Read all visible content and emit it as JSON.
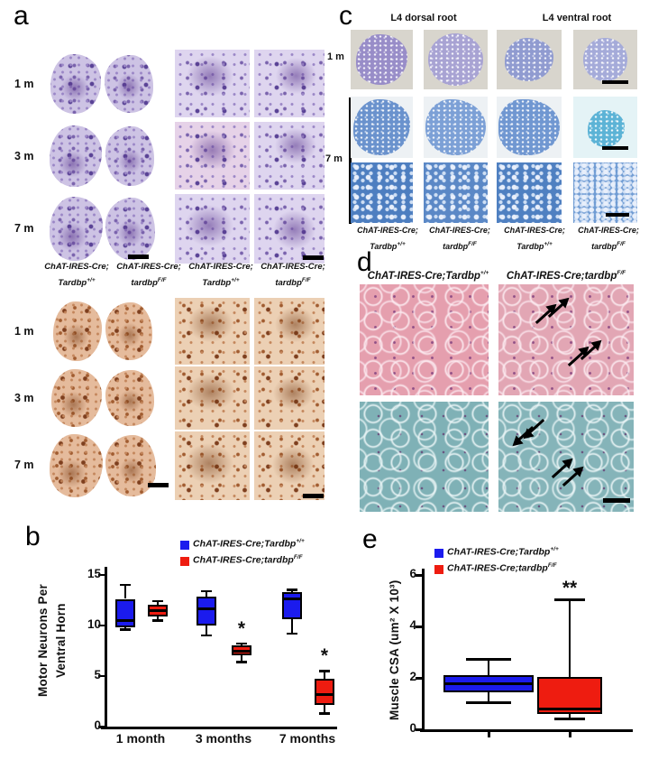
{
  "panels": {
    "a": {
      "label": "a",
      "rows": [
        "1 m",
        "3 m",
        "7 m"
      ],
      "genotypes": [
        {
          "line1": "ChAT-IRES-Cre;",
          "base": "Tardbp",
          "sup": "+/+"
        },
        {
          "line1": "ChAT-IRES-Cre;",
          "base": "tardbp",
          "sup": "F/F"
        },
        {
          "line1": "ChAT-IRES-Cre;",
          "base": "Tardbp",
          "sup": "+/+"
        },
        {
          "line1": "ChAT-IRES-Cre;",
          "base": "tardbp",
          "sup": "F/F"
        }
      ]
    },
    "b": {
      "label": "b"
    },
    "c": {
      "label": "c",
      "headers": [
        "L4 dorsal root",
        "L4 ventral root"
      ],
      "rows": [
        "1 m",
        "7 m"
      ],
      "genotypes": [
        {
          "line1": "ChAT-IRES-Cre;",
          "base": "Tardbp",
          "sup": "+/+"
        },
        {
          "line1": "ChAT-IRES-Cre;",
          "base": "tardbp",
          "sup": "F/F"
        },
        {
          "line1": "ChAT-IRES-Cre;",
          "base": "Tardbp",
          "sup": "+/+"
        },
        {
          "line1": "ChAT-IRES-Cre;",
          "base": "tardbp",
          "sup": "F/F"
        }
      ]
    },
    "d": {
      "label": "d",
      "headers": [
        {
          "base": "ChAT-IRES-Cre;Tardbp",
          "sup": "+/+"
        },
        {
          "base": "ChAT-IRES-Cre;tardbp",
          "sup": "F/F"
        }
      ]
    },
    "e": {
      "label": "e"
    }
  },
  "colors": {
    "box_blue": "#1b1bee",
    "box_red": "#ee1c10"
  },
  "chart_data": [
    {
      "id": "b",
      "type": "box",
      "ylabel_lines": [
        "Motor Neurons Per",
        "Ventral Horn"
      ],
      "yticks": [
        0,
        5,
        10,
        15
      ],
      "ylim": [
        0,
        15.5
      ],
      "categories": [
        "1 month",
        "3 months",
        "7 months"
      ],
      "legend": [
        {
          "base": "ChAT-IRES-Cre;Tardbp",
          "sup": "+/+",
          "color": "#1b1bee"
        },
        {
          "base": "ChAT-IRES-Cre;tardbp",
          "sup": "F/F",
          "color": "#ee1c10"
        }
      ],
      "boxes": [
        {
          "series": "control",
          "category": "1 month",
          "color": "#1b1bee",
          "lo": 9.6,
          "q1": 9.8,
          "med": 10.5,
          "q3": 12.6,
          "hi": 14.0,
          "sig": ""
        },
        {
          "series": "mutant",
          "category": "1 month",
          "color": "#ee1c10",
          "lo": 10.5,
          "q1": 10.9,
          "med": 11.4,
          "q3": 12.0,
          "hi": 12.4,
          "sig": ""
        },
        {
          "series": "control",
          "category": "3 months",
          "color": "#1b1bee",
          "lo": 9.0,
          "q1": 10.0,
          "med": 11.6,
          "q3": 12.8,
          "hi": 13.4,
          "sig": ""
        },
        {
          "series": "mutant",
          "category": "3 months",
          "color": "#ee1c10",
          "lo": 6.4,
          "q1": 7.0,
          "med": 7.4,
          "q3": 8.0,
          "hi": 8.2,
          "sig": "*"
        },
        {
          "series": "control",
          "category": "7 months",
          "color": "#1b1bee",
          "lo": 9.2,
          "q1": 10.6,
          "med": 12.6,
          "q3": 13.3,
          "hi": 13.5,
          "sig": ""
        },
        {
          "series": "mutant",
          "category": "7 months",
          "color": "#ee1c10",
          "lo": 1.3,
          "q1": 2.1,
          "med": 3.2,
          "q3": 4.7,
          "hi": 5.5,
          "sig": "*"
        }
      ]
    },
    {
      "id": "e",
      "type": "box",
      "ylabel": "Muscle CSA (um² X 10³)",
      "yticks": [
        0,
        2,
        4,
        6
      ],
      "ylim": [
        0,
        6.2
      ],
      "categories": [
        "",
        ""
      ],
      "legend": [
        {
          "base": "ChAT-IRES-Cre;Tardbp",
          "sup": "+/+",
          "color": "#1b1bee"
        },
        {
          "base": "ChAT-IRES-Cre;tardbp",
          "sup": "F/F",
          "color": "#ee1c10"
        }
      ],
      "boxes": [
        {
          "series": "control",
          "category": "Tardbp+/+",
          "color": "#1b1bee",
          "lo": 1.05,
          "q1": 1.45,
          "med": 1.77,
          "q3": 2.1,
          "hi": 2.73,
          "sig": ""
        },
        {
          "series": "mutant",
          "category": "tardbpF/F",
          "color": "#ee1c10",
          "lo": 0.42,
          "q1": 0.6,
          "med": 0.8,
          "q3": 2.05,
          "hi": 5.05,
          "sig": "**"
        }
      ]
    }
  ]
}
